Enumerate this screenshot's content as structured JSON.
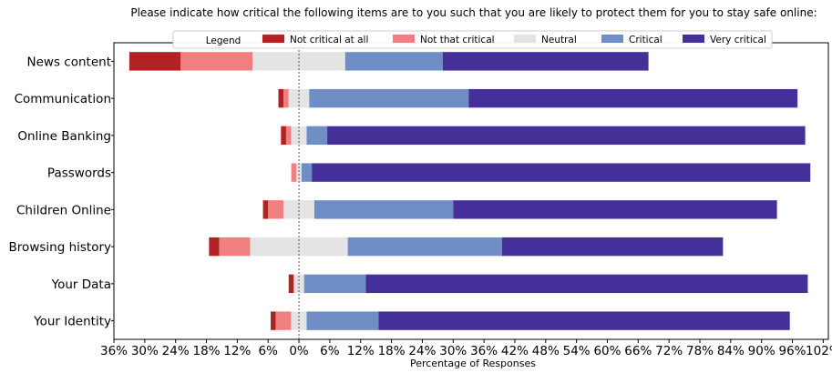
{
  "chart_data": {
    "type": "bar",
    "orientation": "horizontal-diverging-stacked",
    "title": "Please indicate how critical  the following items are to you such that you are likely to protect them for you to stay safe online:",
    "xlabel": "Percentage of Responses",
    "ylabel": "",
    "xlim": [
      -36,
      103
    ],
    "x_ticks": [
      "36%",
      "30%",
      "24%",
      "18%",
      "12%",
      "6%",
      "0%",
      "6%",
      "12%",
      "18%",
      "24%",
      "30%",
      "36%",
      "42%",
      "48%",
      "54%",
      "60%",
      "66%",
      "72%",
      "78%",
      "84%",
      "90%",
      "96%",
      "102%"
    ],
    "legend_title": "Legend",
    "legend_position": "top",
    "categories": [
      "News content",
      "Communication",
      "Online Banking",
      "Passwords",
      "Children Online",
      "Browsing history",
      "Your Data",
      "Your Identity"
    ],
    "series": [
      {
        "name": "Not critical at all",
        "color": "#b22222",
        "values": [
          10.0,
          1.0,
          1.0,
          0.0,
          1.0,
          2.0,
          1.0,
          1.0
        ]
      },
      {
        "name": "Not that critical",
        "color": "#f08080",
        "values": [
          14.0,
          1.0,
          1.0,
          1.0,
          3.0,
          6.0,
          0.0,
          3.0
        ]
      },
      {
        "name": "Neutral",
        "color": "#e4e4e4",
        "values": [
          18.0,
          4.0,
          3.0,
          1.0,
          6.0,
          19.0,
          2.0,
          3.0
        ]
      },
      {
        "name": "Critical",
        "color": "#6f8ec6",
        "values": [
          19.0,
          31.0,
          4.0,
          2.0,
          27.0,
          30.0,
          12.0,
          14.0
        ]
      },
      {
        "name": "Very critical",
        "color": "#45309a",
        "values": [
          40.0,
          64.0,
          93.0,
          97.0,
          63.0,
          43.0,
          86.0,
          80.0
        ]
      }
    ]
  }
}
